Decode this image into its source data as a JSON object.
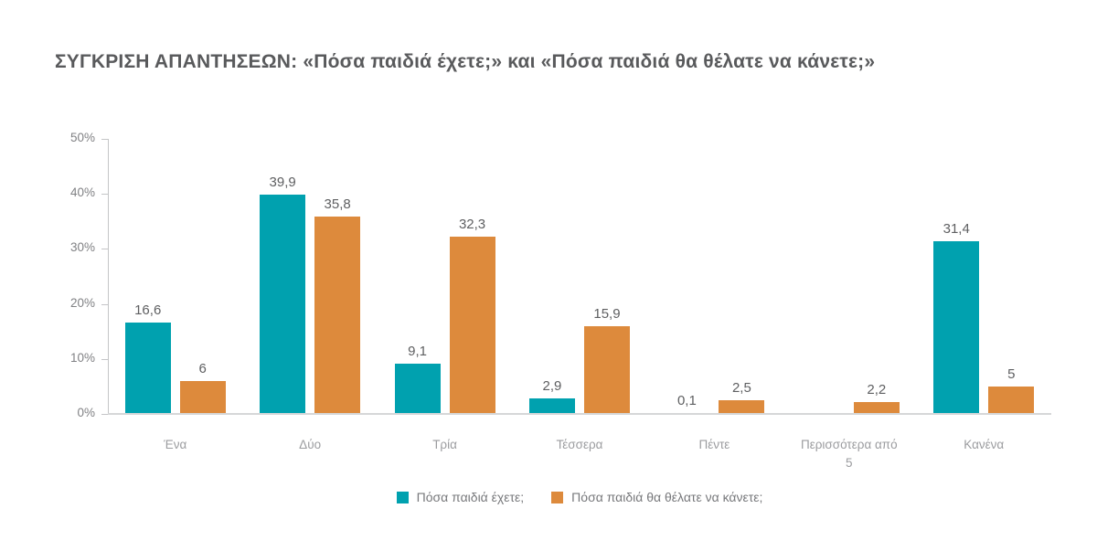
{
  "title": "ΣΥΓΚΡΙΣΗ ΑΠΑΝΤΗΣΕΩΝ: «Πόσα παιδιά έχετε;» και «Πόσα παιδιά θα θέλατε να κάνετε;»",
  "colors": {
    "series1": "#00a1af",
    "series2": "#dd8a3c",
    "title_text": "#595a5c",
    "axis_tick_text": "#808184",
    "category_text": "#9b9c9f",
    "value_label_text": "#5e5f61",
    "axis_line": "#c4c5c7",
    "baseline": "#d6d7d8",
    "background": "#ffffff"
  },
  "chart_data": {
    "type": "bar",
    "title": "ΣΥΓΚΡΙΣΗ ΑΠΑΝΤΗΣΕΩΝ: «Πόσα παιδιά έχετε;» και «Πόσα παιδιά θα θέλατε να κάνετε;»",
    "categories": [
      "Ένα",
      "Δύο",
      "Τρία",
      "Τέσσερα",
      "Πέντε",
      "Περισσότερα από 5",
      "Κανένα"
    ],
    "series": [
      {
        "name": "Πόσα παιδιά έχετε;",
        "color": "#00a1af",
        "values": [
          16.6,
          39.9,
          9.1,
          2.9,
          0.1,
          null,
          31.4
        ],
        "display_labels": [
          "16,6",
          "39,9",
          "9,1",
          "2,9",
          "0,1",
          "",
          "31,4"
        ]
      },
      {
        "name": "Πόσα παιδιά θα θέλατε να κάνετε;",
        "color": "#dd8a3c",
        "values": [
          6,
          35.8,
          32.3,
          15.9,
          2.5,
          2.2,
          5
        ],
        "display_labels": [
          "6",
          "35,8",
          "32,3",
          "15,9",
          "2,5",
          "2,2",
          "5"
        ]
      }
    ],
    "xlabel": "",
    "ylabel": "",
    "ylim": [
      0,
      50
    ],
    "yticks": [
      "0%",
      "10%",
      "20%",
      "30%",
      "40%",
      "50%"
    ],
    "grid": false,
    "legend_position": "bottom"
  }
}
